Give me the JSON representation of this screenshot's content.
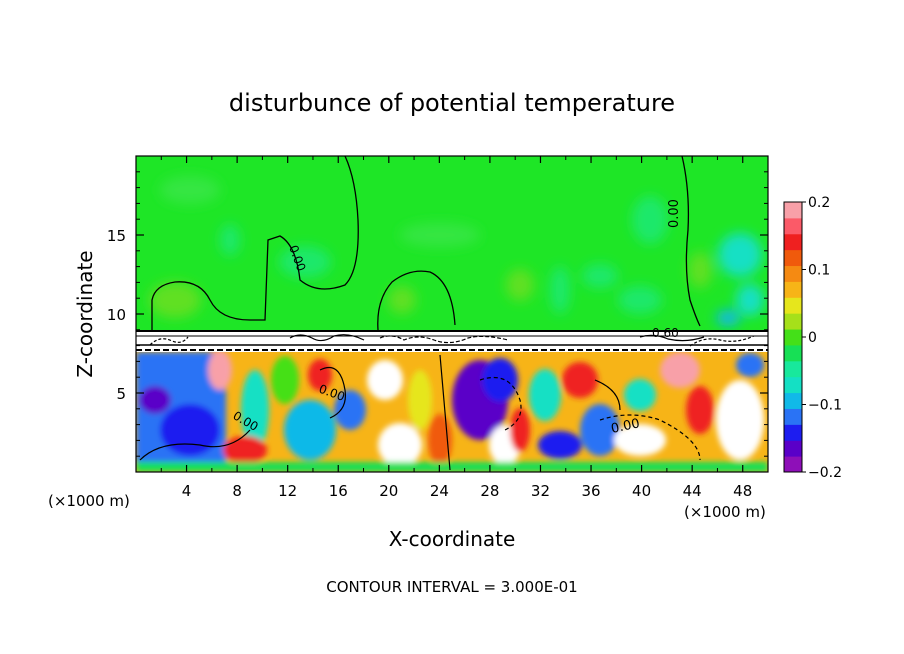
{
  "chart_data": {
    "type": "heatmap",
    "title": "disturbunce of potential temperature",
    "xlabel": "X-coordinate",
    "ylabel": "Z-coordinate",
    "x_unit_left": "(×1000 m)",
    "x_unit_right": "(×1000 m)",
    "x_ticks": [
      "4",
      "8",
      "12",
      "16",
      "20",
      "24",
      "28",
      "32",
      "36",
      "40",
      "44",
      "48"
    ],
    "y_ticks": [
      "5",
      "10",
      "15"
    ],
    "xlim": [
      0,
      50
    ],
    "ylim": [
      0,
      20
    ],
    "colorbar": {
      "ticks": [
        "0.2",
        "0.1",
        "0",
        "−0.1",
        "−0.2"
      ],
      "range": [
        -0.2,
        0.2
      ],
      "colors": [
        "#8e0fb8",
        "#5a00c8",
        "#1d1df0",
        "#2a73f5",
        "#11b9e8",
        "#14e0c4",
        "#18e89c",
        "#17e055",
        "#44e018",
        "#a6e01a",
        "#e6e61c",
        "#f7b417",
        "#f58a12",
        "#f05a0c",
        "#ef2020",
        "#fb5a68",
        "#f8a0a8"
      ]
    },
    "contour_labels": [
      "0.00",
      "0.00",
      "0.00",
      "0.00",
      "0.00",
      "0.60"
    ],
    "annotation": "CONTOUR INTERVAL = 3.000E-01"
  }
}
